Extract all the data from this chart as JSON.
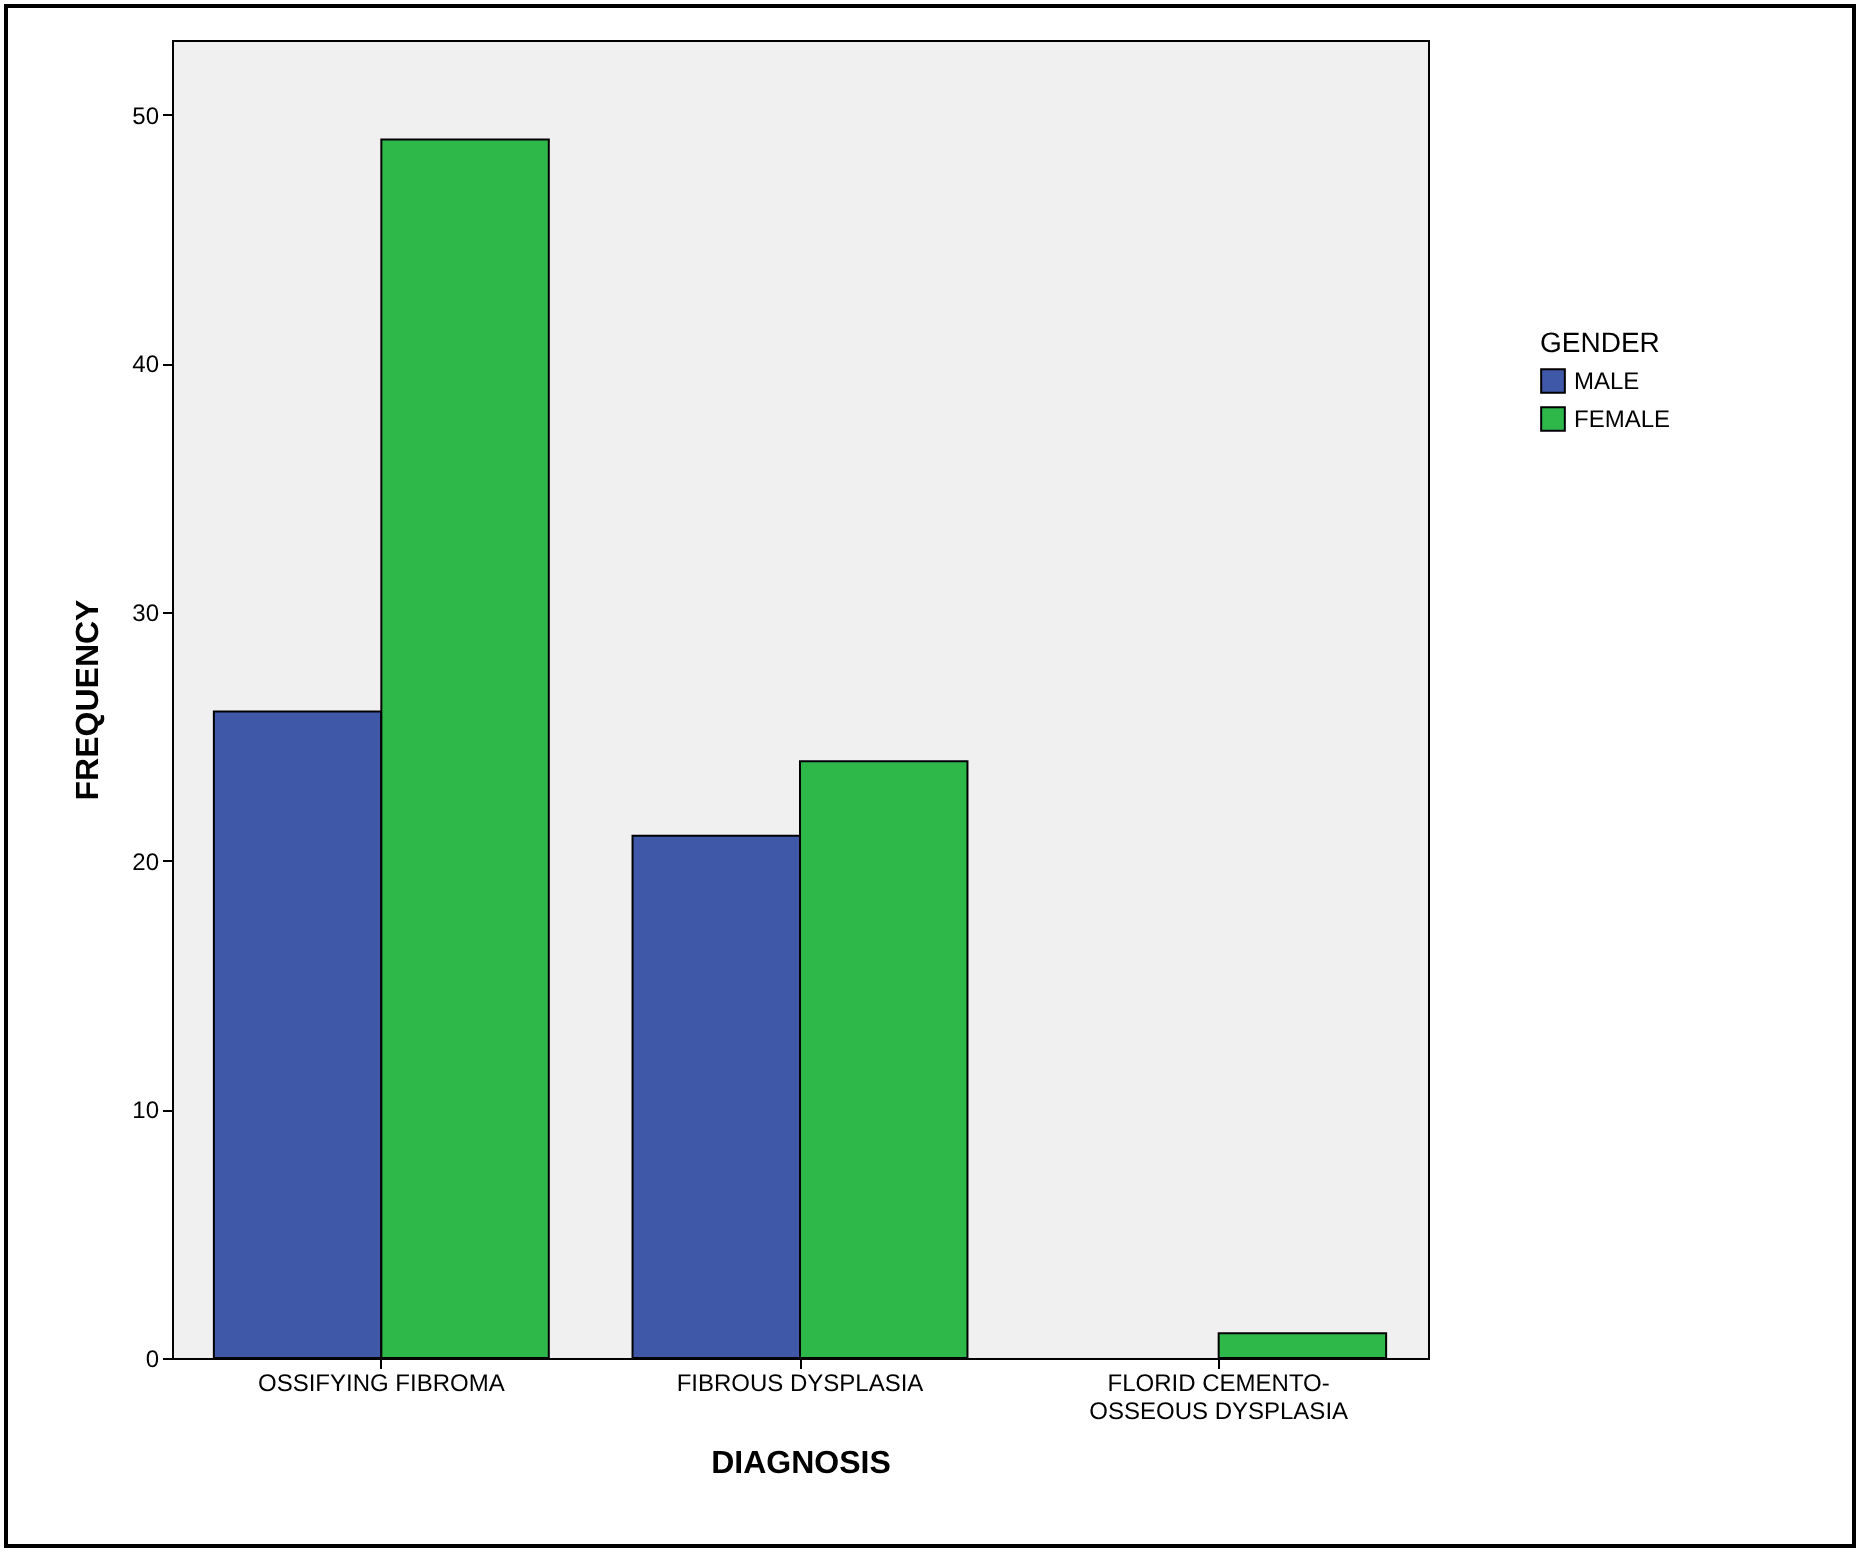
{
  "chart_data": {
    "type": "bar",
    "xlabel": "DIAGNOSIS",
    "ylabel": "FREQUENCY",
    "legend_title": "GENDER",
    "legend": "right",
    "grid": false,
    "categories": [
      "OSSIFYING FIBROMA",
      "FIBROUS DYSPLASIA",
      "FLORID CEMENTO-OSSEOUS DYSPLASIA"
    ],
    "series": [
      {
        "name": "MALE",
        "color": "#3f58a8",
        "values": [
          26,
          21,
          null
        ]
      },
      {
        "name": "FEMALE",
        "color": "#2fb84a",
        "values": [
          49,
          24,
          1
        ]
      }
    ],
    "ylim": [
      0,
      53
    ],
    "yticks": [
      0,
      10,
      20,
      30,
      40,
      50
    ]
  }
}
